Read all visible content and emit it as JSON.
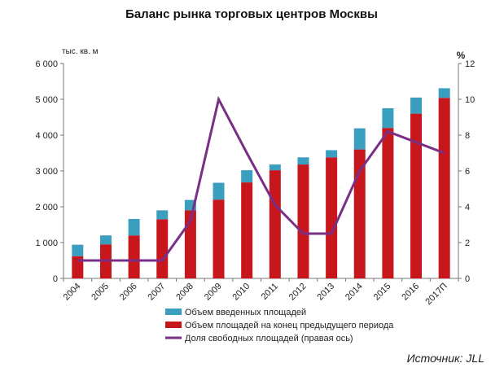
{
  "chart_data": {
    "type": "bar",
    "title": "Баланс рынка торговых центров Москвы",
    "y_left_unit": "тыс. кв. м",
    "y_right_unit": "%",
    "ylim_left": [
      0,
      6000
    ],
    "ylim_right": [
      0,
      12
    ],
    "y_left_ticks": [
      "0",
      "1 000",
      "2 000",
      "3 000",
      "4 000",
      "5 000",
      "6 000"
    ],
    "y_right_ticks": [
      "0",
      "2",
      "4",
      "6",
      "8",
      "10",
      "12"
    ],
    "categories": [
      "2004",
      "2005",
      "2006",
      "2007",
      "2008",
      "2009",
      "2010",
      "2011",
      "2012",
      "2013",
      "2014",
      "2015",
      "2016",
      "2017П"
    ],
    "series": [
      {
        "name": "Объем площадей на конец предыдущего периода",
        "type": "bar",
        "stack": "main",
        "axis": "left",
        "color": "#c8161d",
        "values": [
          620,
          950,
          1200,
          1650,
          1900,
          2200,
          2680,
          3020,
          3180,
          3380,
          3600,
          4200,
          4600,
          5040
        ]
      },
      {
        "name": "Объем введенных площадей",
        "type": "bar",
        "stack": "main",
        "axis": "left",
        "color": "#3a9fbf",
        "values": [
          320,
          250,
          460,
          250,
          290,
          470,
          340,
          160,
          200,
          200,
          590,
          550,
          450,
          270
        ]
      },
      {
        "name": "Доля свободных площадей (правая ось)",
        "type": "line",
        "axis": "right",
        "color": "#7a2f87",
        "values": [
          1.0,
          1.0,
          1.0,
          1.0,
          3.2,
          10.0,
          7.0,
          4.1,
          2.5,
          2.5,
          6.0,
          8.2,
          7.6,
          7.0
        ]
      }
    ],
    "legend": {
      "placement": "bottom",
      "order": [
        "Объем введенных площадей",
        "Объем площадей на конец предыдущего периода",
        "Доля свободных площадей (правая ось)"
      ]
    },
    "grid": false
  },
  "source_text": "Источник: JLL"
}
